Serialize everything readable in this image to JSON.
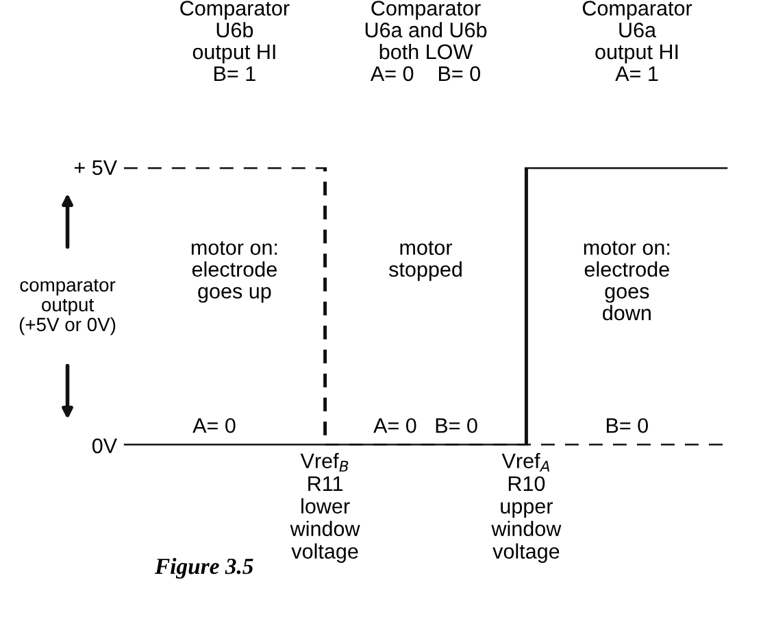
{
  "chart_data": {
    "type": "step",
    "categories": [
      null,
      "Vref$_{B}$\nR11\nlower\nwindow\nvoltage",
      "Vref$_{A}$\nR10\nupper\nwindow\nvoltage",
      null
    ],
    "series": [
      {
        "color": "#111111",
        "line_style": "dashed",
        "values": [
          5,
          0,
          0,
          0
        ]
      },
      {
        "color": "#111111",
        "line_style": "solid",
        "values": [
          0,
          0,
          5,
          5
        ]
      }
    ],
    "ylim": [
      0,
      5
    ],
    "yticks": [
      {
        "value": 5,
        "label": "+ 5V"
      },
      {
        "value": 0,
        "label": "0V"
      }
    ],
    "grid": false,
    "legend": false,
    "annotations": [
      "Comparator\nU6b\noutput HI\nB= 1",
      "Comparator\nU6a and U6b\nboth LOW\nA= 0    B= 0",
      "Comparator\nU6a\noutput HI\nA= 1",
      "motor on:\nelectrode\ngoes up",
      "motor\nstopped",
      "motor on:\nelectrode\ngoes\ndown",
      "comparator\noutput\n(+5V or 0V)",
      "A= 0",
      "A= 0   B= 0",
      "B= 0",
      "Figure 3.5"
    ]
  }
}
